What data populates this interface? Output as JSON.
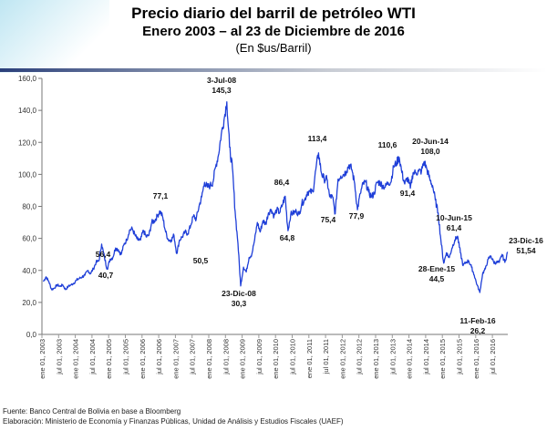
{
  "chart_data": {
    "type": "line",
    "title": "Precio diario del barril de petróleo WTI",
    "subtitle": "Enero 2003 – al 23 de Diciembre de 2016",
    "unit_label": "(En $us/Barril)",
    "xlabel": "",
    "ylabel": "",
    "ylim": [
      0,
      160
    ],
    "yticks": [
      "0,0",
      "20,0",
      "40,0",
      "60,0",
      "80,0",
      "100,0",
      "120,0",
      "140,0",
      "160,0"
    ],
    "xticks": [
      "ene 01, 2003",
      "jul 01, 2003",
      "ene 01, 2004",
      "jul 01, 2004",
      "ene 01, 2005",
      "jul 01, 2005",
      "ene 01, 2006",
      "jul 01, 2006",
      "ene 01, 2007",
      "jul 01, 2007",
      "ene 01, 2008",
      "jul 01, 2008",
      "ene 01, 2009",
      "jul 01, 2009",
      "ene 01, 2010",
      "jul 01, 2010",
      "ene 01, 2011",
      "jul 01, 2011",
      "ene 01, 2012",
      "jul 01, 2012",
      "ene 01, 2013",
      "jul 01, 2013",
      "ene 01, 2014",
      "jul 01, 2014",
      "ene 01, 2015",
      "jul 01, 2015",
      "ene 01, 2016",
      "jul 01, 2016"
    ],
    "grid": false,
    "series": [
      {
        "name": "WTI",
        "color": "#1f3fd8",
        "start": "2003-01",
        "frequency": "monthly",
        "values": [
          33,
          36,
          33,
          28,
          29,
          31,
          30,
          31,
          28,
          30,
          31,
          32,
          34,
          35,
          36,
          37,
          40,
          38,
          41,
          45,
          46,
          56.4,
          48,
          40.7,
          47,
          48,
          54,
          53,
          50,
          56,
          59,
          65,
          66,
          62,
          59,
          59,
          65,
          61,
          62,
          70,
          71,
          74,
          77.1,
          73,
          64,
          59,
          59,
          62,
          50.5,
          59,
          61,
          64,
          63,
          68,
          74,
          72,
          80,
          86,
          95,
          92,
          93,
          95,
          105,
          112,
          125,
          134,
          145.3,
          117,
          104,
          77,
          57,
          30.3,
          42,
          39,
          48,
          50,
          59,
          70,
          64,
          71,
          69,
          76,
          78,
          74,
          78,
          76,
          81,
          86.4,
          64.8,
          75,
          76,
          77,
          75,
          82,
          84,
          89,
          89,
          89,
          103,
          113.4,
          101,
          97,
          97,
          86,
          86,
          75.4,
          97,
          99,
          100,
          102,
          106,
          103,
          94,
          77.9,
          88,
          94,
          95,
          89,
          86,
          88,
          95,
          95,
          93,
          92,
          95,
          95,
          105,
          107,
          110.6,
          101,
          94,
          98,
          91.4,
          101,
          101,
          102,
          102,
          108.0,
          103,
          97,
          93,
          84,
          76,
          59,
          44.5,
          51,
          48,
          54,
          59,
          61.4,
          51,
          43,
          45,
          46,
          42,
          37,
          31,
          26.2,
          38,
          41,
          47,
          49,
          45,
          45,
          45,
          50,
          45,
          51.54
        ]
      }
    ],
    "annotations": [
      {
        "date": "3-Jul-08",
        "value": "145,3"
      },
      {
        "date": "23-Dic-08",
        "value": "30,3"
      },
      {
        "date": "",
        "value": "56,4"
      },
      {
        "date": "",
        "value": "40,7"
      },
      {
        "date": "",
        "value": "77,1"
      },
      {
        "date": "",
        "value": "50,5"
      },
      {
        "date": "",
        "value": "86,4"
      },
      {
        "date": "",
        "value": "64,8"
      },
      {
        "date": "",
        "value": "113,4"
      },
      {
        "date": "",
        "value": "75,4"
      },
      {
        "date": "",
        "value": "77,9"
      },
      {
        "date": "",
        "value": "110,6"
      },
      {
        "date": "",
        "value": "91,4"
      },
      {
        "date": "20-Jun-14",
        "value": "108,0"
      },
      {
        "date": "10-Jun-15",
        "value": "61,4"
      },
      {
        "date": "28-Ene-15",
        "value": "44,5"
      },
      {
        "date": "11-Feb-16",
        "value": "26,2"
      },
      {
        "date": "23-Dic-16",
        "value": "51,54"
      }
    ]
  },
  "footer": {
    "source": "Fuente: Banco Central de Bolivia en base a Bloomberg",
    "credit": "Elaboración: Ministerio de Economía y Finanzas Públicas, Unidad de Análisis y Estudios Fiscales (UAEF)"
  }
}
